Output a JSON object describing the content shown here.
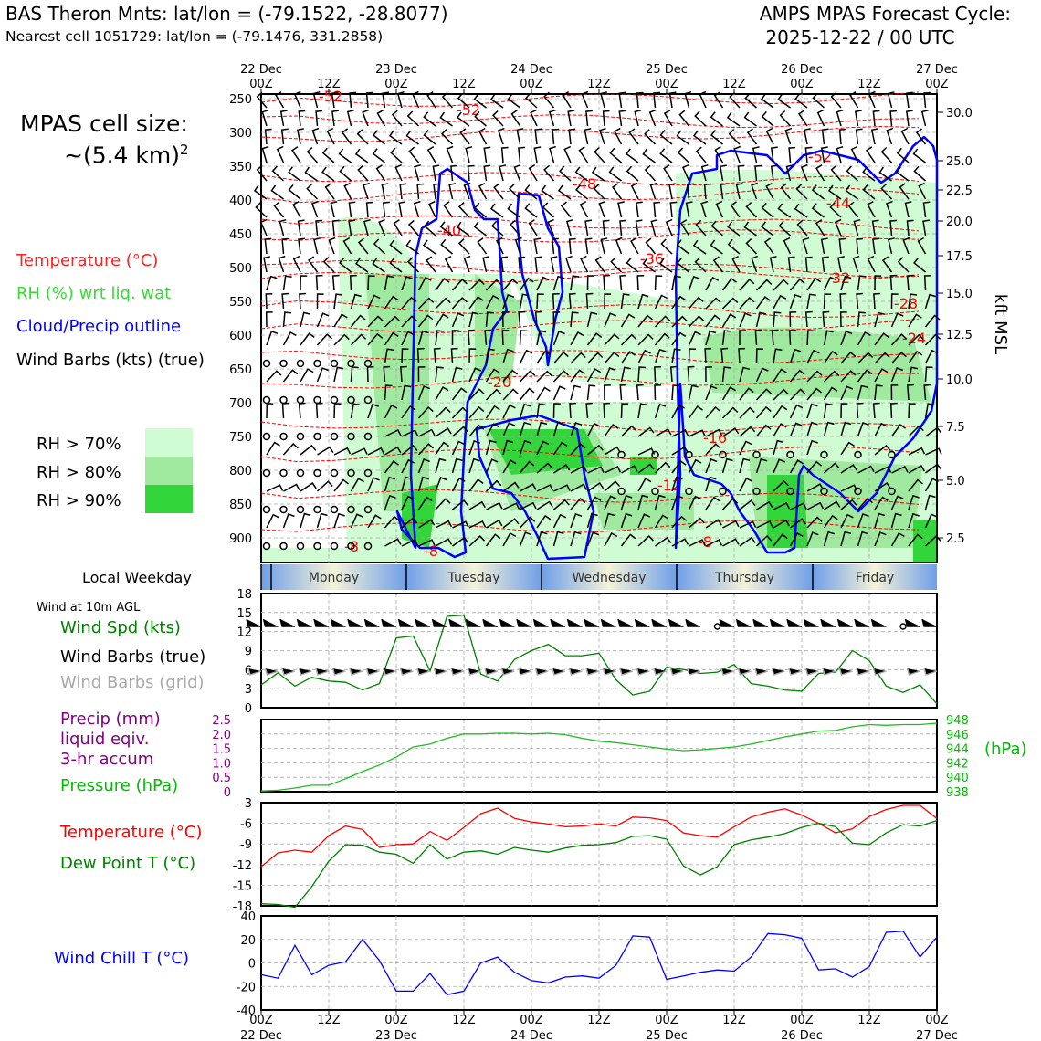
{
  "header": {
    "station": "BAS Theron Mnts: lat/lon = (-79.1522, -28.8077)",
    "nearest": "Nearest cell 1051729: lat/lon = (-79.1476, 331.2858)",
    "model": "AMPS MPAS Forecast Cycle:",
    "cycle": "2025-12-22 / 00 UTC"
  },
  "cell_size": {
    "line1": "MPAS cell size:",
    "line2": "~(5.4 km)"
  },
  "legend": {
    "temperature": "Temperature (°C)",
    "rh": "RH (%) wrt liq. wat",
    "cloud": "Cloud/Precip outline",
    "barbs": "Wind Barbs (kts) (true)",
    "rh70": "RH > 70%",
    "rh80": "RH > 80%",
    "rh90": "RH > 90%"
  },
  "colors": {
    "rh70": "#cffcd3",
    "rh80": "#a0ea9f",
    "rh90": "#33d63a",
    "temp": "#ff0000",
    "cloud": "#0000ff",
    "pressure": "#00bb00",
    "dewpoint": "#008000",
    "windchill": "#0000ff",
    "precip": "#800080"
  },
  "time_axis": {
    "top_labels": [
      {
        "day": "22 Dec",
        "hour": "00Z"
      },
      {
        "day": "",
        "hour": "12Z"
      },
      {
        "day": "23 Dec",
        "hour": "00Z"
      },
      {
        "day": "",
        "hour": "12Z"
      },
      {
        "day": "24 Dec",
        "hour": "00Z"
      },
      {
        "day": "",
        "hour": "12Z"
      },
      {
        "day": "25 Dec",
        "hour": "00Z"
      },
      {
        "day": "",
        "hour": "12Z"
      },
      {
        "day": "26 Dec",
        "hour": "00Z"
      },
      {
        "day": "",
        "hour": "12Z"
      },
      {
        "day": "27 Dec",
        "hour": "00Z"
      }
    ]
  },
  "weekday": {
    "label": "Local Weekday",
    "days": [
      "Monday",
      "Tuesday",
      "Wednesday",
      "Thursday",
      "Friday"
    ]
  },
  "panels": {
    "wind_title": "Wind at 10m AGL",
    "wind_spd": "Wind Spd (kts)",
    "wind_barbs_true": "Wind Barbs (true)",
    "wind_barbs_grid": "Wind Barbs (grid)",
    "precip1": "Precip (mm)",
    "precip2": "liquid eqiv.",
    "precip3": "3-hr accum",
    "pressure": "Pressure (hPa)",
    "hpa": "(hPa)",
    "temp": "Temperature (°C)",
    "dew": "Dew Point T (°C)",
    "windchill": "Wind Chill T (°C)"
  },
  "chart_data": [
    {
      "type": "line",
      "name": "cross-section",
      "y_left_label": "",
      "y_right_label": "kft MSL",
      "pressure_ticks": [
        "250",
        "300",
        "350",
        "400",
        "450",
        "500",
        "550",
        "600",
        "650",
        "700",
        "750",
        "800",
        "850",
        "900"
      ],
      "height_ticks": [
        "30.0",
        "25.0",
        "22.5",
        "20.0",
        "17.5",
        "15.0",
        "12.5",
        "10.0",
        "7.5",
        "5.0",
        "2.5"
      ],
      "temp_contour_labels": [
        "-52",
        "-52",
        "-48",
        "-52",
        "-44",
        "-40",
        "-36",
        "-32",
        "-28",
        "-24",
        "-20",
        "-16",
        "-12",
        "-8",
        "-8",
        "-8"
      ]
    },
    {
      "type": "line",
      "name": "wind speed",
      "x_hours": [
        0,
        3,
        6,
        9,
        12,
        15,
        18,
        21,
        24,
        27,
        30,
        33,
        36,
        39,
        42,
        45,
        48,
        51,
        54,
        57,
        60,
        63,
        66,
        69,
        72,
        75,
        78,
        81,
        84,
        87,
        90,
        93,
        96,
        99,
        102,
        105,
        108,
        111,
        114,
        117,
        120
      ],
      "ylim": [
        0,
        18
      ],
      "yticks": [
        "18",
        "15",
        "12",
        "9",
        "6",
        "3",
        "0"
      ],
      "values": [
        3.6,
        5.5,
        3.4,
        4.8,
        4.2,
        4.0,
        2.8,
        3.8,
        11.0,
        11.3,
        5.8,
        14.4,
        14.6,
        5.3,
        4.2,
        7.6,
        9.0,
        10.0,
        8.2,
        8.2,
        8.6,
        4.4,
        2.0,
        2.6,
        6.4,
        6.0,
        5.4,
        5.6,
        6.8,
        3.8,
        3.4,
        2.8,
        2.6,
        5.4,
        5.6,
        9.0,
        7.4,
        3.4,
        2.4,
        3.6,
        0.6
      ]
    },
    {
      "type": "line",
      "name": "precip and pressure",
      "ylim_left": [
        0,
        2.5
      ],
      "yticks_left": [
        "2.5",
        "2.0",
        "1.5",
        "1.0",
        "0.5",
        "0"
      ],
      "yticks_right": [
        "948",
        "946",
        "944",
        "942",
        "940",
        "938"
      ],
      "pressure_hpa": [
        938.1,
        938.2,
        938.5,
        938.9,
        938.9,
        939.8,
        940.8,
        941.7,
        942.8,
        944.2,
        944.6,
        945.4,
        946.0,
        946.0,
        946.1,
        946.1,
        946.0,
        946.1,
        945.9,
        945.4,
        945.0,
        944.8,
        944.5,
        944.2,
        943.9,
        943.7,
        943.8,
        944.0,
        944.2,
        944.6,
        945.1,
        945.6,
        946.0,
        946.4,
        946.5,
        947.0,
        947.3,
        947.2,
        947.3,
        947.3,
        947.5
      ],
      "precip_mm": []
    },
    {
      "type": "line",
      "name": "temperature and dew point",
      "ylim": [
        -18,
        -3
      ],
      "yticks": [
        "-3",
        "-6",
        "-9",
        "-12",
        "-15",
        "-18"
      ],
      "temperature": [
        -12.3,
        -10.3,
        -9.9,
        -10.2,
        -7.8,
        -6.4,
        -6.9,
        -9.5,
        -9.1,
        -9.0,
        -7.2,
        -8.5,
        -6.6,
        -4.6,
        -3.8,
        -5.3,
        -5.8,
        -6.1,
        -6.5,
        -6.4,
        -6.1,
        -6.4,
        -5.1,
        -5.2,
        -5.6,
        -7.4,
        -7.8,
        -8.0,
        -6.5,
        -5.1,
        -4.4,
        -3.9,
        -4.8,
        -6.0,
        -7.4,
        -6.8,
        -5.0,
        -4.0,
        -3.4,
        -3.4,
        -5.3
      ],
      "dew_point": [
        -17.7,
        -17.8,
        -18.2,
        -15.2,
        -11.5,
        -9.1,
        -9.2,
        -10.2,
        -10.5,
        -11.8,
        -9.1,
        -11.2,
        -10.2,
        -10.0,
        -10.5,
        -9.5,
        -9.9,
        -10.2,
        -9.6,
        -9.2,
        -9.1,
        -8.8,
        -7.9,
        -7.8,
        -8.3,
        -12.2,
        -13.5,
        -12.3,
        -9.1,
        -8.4,
        -8.0,
        -7.5,
        -6.6,
        -6.0,
        -6.5,
        -8.9,
        -9.1,
        -7.4,
        -6.2,
        -6.4,
        -5.6
      ]
    },
    {
      "type": "line",
      "name": "wind chill",
      "ylim": [
        -40,
        40
      ],
      "yticks": [
        "40",
        "20",
        "0",
        "-20",
        "-40"
      ],
      "values": [
        -10,
        -13,
        15,
        -10,
        -2,
        1,
        20,
        2,
        -24,
        -24,
        -9,
        -27,
        -24,
        0,
        5,
        -8,
        -15,
        -17,
        -12,
        -11,
        -13,
        -2,
        23,
        22,
        -14,
        -11,
        -8,
        -6,
        -7,
        5,
        25,
        24,
        21,
        -6,
        -5,
        -12,
        -3,
        26,
        27,
        5,
        22
      ]
    }
  ],
  "bottom_axis": [
    {
      "hour": "00Z",
      "day": "22 Dec"
    },
    {
      "hour": "12Z",
      "day": ""
    },
    {
      "hour": "00Z",
      "day": "23 Dec"
    },
    {
      "hour": "12Z",
      "day": ""
    },
    {
      "hour": "00Z",
      "day": "24 Dec"
    },
    {
      "hour": "12Z",
      "day": ""
    },
    {
      "hour": "00Z",
      "day": "25 Dec"
    },
    {
      "hour": "12Z",
      "day": ""
    },
    {
      "hour": "00Z",
      "day": "26 Dec"
    },
    {
      "hour": "12Z",
      "day": ""
    },
    {
      "hour": "00Z",
      "day": "27 Dec"
    }
  ]
}
